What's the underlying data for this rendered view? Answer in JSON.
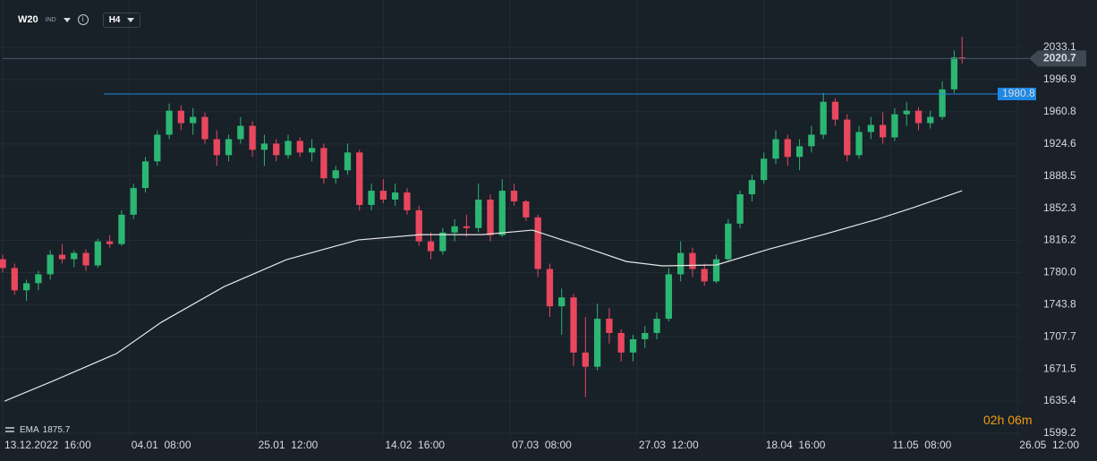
{
  "header": {
    "symbol": "W20",
    "market": "IND",
    "timeframe": "H4"
  },
  "countdown": "02h 06m",
  "chart_data": {
    "type": "candlestick",
    "up_color": "#2bb673",
    "down_color": "#e8475e",
    "grid": true,
    "xlim": [
      0,
      260
    ],
    "ylim": [
      1595.2,
      2086.5
    ],
    "yticks": [
      {
        "value": 2033.1,
        "label": "2033.1"
      },
      {
        "value": 1996.9,
        "label": "1996.9"
      },
      {
        "value": 1960.8,
        "label": "1960.8"
      },
      {
        "value": 1924.6,
        "label": "1924.6"
      },
      {
        "value": 1888.5,
        "label": "1888.5"
      },
      {
        "value": 1852.3,
        "label": "1852.3"
      },
      {
        "value": 1816.2,
        "label": "1816.2"
      },
      {
        "value": 1780.0,
        "label": "1780.0"
      },
      {
        "value": 1743.8,
        "label": "1743.8"
      },
      {
        "value": 1707.7,
        "label": "1707.7"
      },
      {
        "value": 1671.5,
        "label": "1671.5"
      },
      {
        "value": 1635.4,
        "label": "1635.4"
      },
      {
        "value": 1599.2,
        "label": "1599.2"
      }
    ],
    "xticks": [
      {
        "value": 0,
        "label": "13.12.2022  16:00"
      },
      {
        "value": 32,
        "label": "04.01  08:00"
      },
      {
        "value": 64,
        "label": "25.01  12:00"
      },
      {
        "value": 96,
        "label": "14.02  16:00"
      },
      {
        "value": 128,
        "label": "07.03  08:00"
      },
      {
        "value": 160,
        "label": "27.03  12:00"
      },
      {
        "value": 192,
        "label": "18.04  16:00"
      },
      {
        "value": 224,
        "label": "11.05  08:00"
      },
      {
        "value": 256,
        "label": "26.05  12:00"
      }
    ],
    "candles": [
      {
        "x": 0,
        "open": 1795,
        "high": 1800,
        "low": 1780,
        "close": 1785
      },
      {
        "x": 3,
        "open": 1785,
        "high": 1790,
        "low": 1755,
        "close": 1760
      },
      {
        "x": 6,
        "open": 1760,
        "high": 1772,
        "low": 1748,
        "close": 1768
      },
      {
        "x": 9,
        "open": 1768,
        "high": 1782,
        "low": 1760,
        "close": 1778
      },
      {
        "x": 12,
        "open": 1778,
        "high": 1805,
        "low": 1772,
        "close": 1800
      },
      {
        "x": 15,
        "open": 1800,
        "high": 1812,
        "low": 1790,
        "close": 1795
      },
      {
        "x": 18,
        "open": 1795,
        "high": 1805,
        "low": 1786,
        "close": 1802
      },
      {
        "x": 21,
        "open": 1802,
        "high": 1806,
        "low": 1782,
        "close": 1788
      },
      {
        "x": 24,
        "open": 1788,
        "high": 1818,
        "low": 1785,
        "close": 1815
      },
      {
        "x": 27,
        "open": 1815,
        "high": 1822,
        "low": 1808,
        "close": 1812
      },
      {
        "x": 30,
        "open": 1812,
        "high": 1850,
        "low": 1810,
        "close": 1845
      },
      {
        "x": 33,
        "open": 1845,
        "high": 1880,
        "low": 1840,
        "close": 1875
      },
      {
        "x": 36,
        "open": 1875,
        "high": 1910,
        "low": 1870,
        "close": 1905
      },
      {
        "x": 39,
        "open": 1905,
        "high": 1940,
        "low": 1900,
        "close": 1935
      },
      {
        "x": 42,
        "open": 1935,
        "high": 1970,
        "low": 1930,
        "close": 1962
      },
      {
        "x": 45,
        "open": 1962,
        "high": 1968,
        "low": 1940,
        "close": 1948
      },
      {
        "x": 48,
        "open": 1948,
        "high": 1965,
        "low": 1935,
        "close": 1955
      },
      {
        "x": 51,
        "open": 1955,
        "high": 1960,
        "low": 1925,
        "close": 1930
      },
      {
        "x": 54,
        "open": 1930,
        "high": 1940,
        "low": 1900,
        "close": 1912
      },
      {
        "x": 57,
        "open": 1912,
        "high": 1935,
        "low": 1905,
        "close": 1930
      },
      {
        "x": 60,
        "open": 1930,
        "high": 1955,
        "low": 1925,
        "close": 1945
      },
      {
        "x": 63,
        "open": 1945,
        "high": 1950,
        "low": 1910,
        "close": 1918
      },
      {
        "x": 66,
        "open": 1918,
        "high": 1935,
        "low": 1900,
        "close": 1925
      },
      {
        "x": 69,
        "open": 1925,
        "high": 1930,
        "low": 1905,
        "close": 1912
      },
      {
        "x": 72,
        "open": 1912,
        "high": 1935,
        "low": 1908,
        "close": 1928
      },
      {
        "x": 75,
        "open": 1928,
        "high": 1932,
        "low": 1910,
        "close": 1915
      },
      {
        "x": 78,
        "open": 1915,
        "high": 1930,
        "low": 1905,
        "close": 1920
      },
      {
        "x": 81,
        "open": 1920,
        "high": 1925,
        "low": 1880,
        "close": 1886
      },
      {
        "x": 84,
        "open": 1886,
        "high": 1900,
        "low": 1880,
        "close": 1895
      },
      {
        "x": 87,
        "open": 1895,
        "high": 1925,
        "low": 1890,
        "close": 1915
      },
      {
        "x": 90,
        "open": 1915,
        "high": 1918,
        "low": 1850,
        "close": 1856
      },
      {
        "x": 93,
        "open": 1856,
        "high": 1880,
        "low": 1850,
        "close": 1872
      },
      {
        "x": 96,
        "open": 1872,
        "high": 1885,
        "low": 1858,
        "close": 1862
      },
      {
        "x": 99,
        "open": 1862,
        "high": 1880,
        "low": 1855,
        "close": 1870
      },
      {
        "x": 102,
        "open": 1870,
        "high": 1875,
        "low": 1845,
        "close": 1850
      },
      {
        "x": 105,
        "open": 1850,
        "high": 1855,
        "low": 1810,
        "close": 1815
      },
      {
        "x": 108,
        "open": 1815,
        "high": 1825,
        "low": 1795,
        "close": 1804
      },
      {
        "x": 111,
        "open": 1804,
        "high": 1830,
        "low": 1800,
        "close": 1825
      },
      {
        "x": 114,
        "open": 1825,
        "high": 1840,
        "low": 1815,
        "close": 1832
      },
      {
        "x": 117,
        "open": 1832,
        "high": 1845,
        "low": 1820,
        "close": 1830
      },
      {
        "x": 120,
        "open": 1830,
        "high": 1880,
        "low": 1825,
        "close": 1862
      },
      {
        "x": 123,
        "open": 1862,
        "high": 1868,
        "low": 1815,
        "close": 1822
      },
      {
        "x": 126,
        "open": 1822,
        "high": 1885,
        "low": 1820,
        "close": 1872
      },
      {
        "x": 129,
        "open": 1872,
        "high": 1880,
        "low": 1855,
        "close": 1860
      },
      {
        "x": 132,
        "open": 1860,
        "high": 1862,
        "low": 1838,
        "close": 1842
      },
      {
        "x": 135,
        "open": 1842,
        "high": 1845,
        "low": 1775,
        "close": 1784
      },
      {
        "x": 138,
        "open": 1784,
        "high": 1790,
        "low": 1730,
        "close": 1742
      },
      {
        "x": 141,
        "open": 1742,
        "high": 1762,
        "low": 1710,
        "close": 1752
      },
      {
        "x": 144,
        "open": 1752,
        "high": 1756,
        "low": 1675,
        "close": 1690
      },
      {
        "x": 147,
        "open": 1690,
        "high": 1730,
        "low": 1640,
        "close": 1674
      },
      {
        "x": 150,
        "open": 1674,
        "high": 1745,
        "low": 1670,
        "close": 1728
      },
      {
        "x": 153,
        "open": 1728,
        "high": 1740,
        "low": 1700,
        "close": 1712
      },
      {
        "x": 156,
        "open": 1712,
        "high": 1716,
        "low": 1680,
        "close": 1690
      },
      {
        "x": 159,
        "open": 1690,
        "high": 1710,
        "low": 1680,
        "close": 1705
      },
      {
        "x": 162,
        "open": 1705,
        "high": 1720,
        "low": 1695,
        "close": 1712
      },
      {
        "x": 165,
        "open": 1712,
        "high": 1735,
        "low": 1705,
        "close": 1728
      },
      {
        "x": 168,
        "open": 1728,
        "high": 1785,
        "low": 1725,
        "close": 1778
      },
      {
        "x": 171,
        "open": 1778,
        "high": 1815,
        "low": 1770,
        "close": 1802
      },
      {
        "x": 174,
        "open": 1802,
        "high": 1808,
        "low": 1775,
        "close": 1784
      },
      {
        "x": 177,
        "open": 1784,
        "high": 1790,
        "low": 1765,
        "close": 1770
      },
      {
        "x": 180,
        "open": 1770,
        "high": 1800,
        "low": 1768,
        "close": 1795
      },
      {
        "x": 183,
        "open": 1795,
        "high": 1840,
        "low": 1792,
        "close": 1835
      },
      {
        "x": 186,
        "open": 1835,
        "high": 1872,
        "low": 1830,
        "close": 1868
      },
      {
        "x": 189,
        "open": 1868,
        "high": 1890,
        "low": 1860,
        "close": 1884
      },
      {
        "x": 192,
        "open": 1884,
        "high": 1915,
        "low": 1880,
        "close": 1908
      },
      {
        "x": 195,
        "open": 1908,
        "high": 1940,
        "low": 1902,
        "close": 1930
      },
      {
        "x": 198,
        "open": 1930,
        "high": 1935,
        "low": 1900,
        "close": 1910
      },
      {
        "x": 201,
        "open": 1910,
        "high": 1930,
        "low": 1895,
        "close": 1922
      },
      {
        "x": 204,
        "open": 1922,
        "high": 1945,
        "low": 1915,
        "close": 1935
      },
      {
        "x": 207,
        "open": 1935,
        "high": 1982,
        "low": 1930,
        "close": 1972
      },
      {
        "x": 210,
        "open": 1972,
        "high": 1976,
        "low": 1945,
        "close": 1952
      },
      {
        "x": 213,
        "open": 1952,
        "high": 1958,
        "low": 1905,
        "close": 1912
      },
      {
        "x": 216,
        "open": 1912,
        "high": 1945,
        "low": 1908,
        "close": 1938
      },
      {
        "x": 219,
        "open": 1938,
        "high": 1955,
        "low": 1930,
        "close": 1946
      },
      {
        "x": 222,
        "open": 1946,
        "high": 1960,
        "low": 1925,
        "close": 1932
      },
      {
        "x": 225,
        "open": 1932,
        "high": 1965,
        "low": 1928,
        "close": 1958
      },
      {
        "x": 228,
        "open": 1958,
        "high": 1972,
        "low": 1945,
        "close": 1962
      },
      {
        "x": 231,
        "open": 1962,
        "high": 1966,
        "low": 1940,
        "close": 1948
      },
      {
        "x": 234,
        "open": 1948,
        "high": 1962,
        "low": 1942,
        "close": 1955
      },
      {
        "x": 237,
        "open": 1955,
        "high": 1995,
        "low": 1952,
        "close": 1986
      },
      {
        "x": 240,
        "open": 1986,
        "high": 2030,
        "low": 1982,
        "close": 2022
      },
      {
        "x": 242,
        "open": 2022,
        "high": 2045,
        "low": 2015,
        "close": 2020.7
      }
    ],
    "ema": {
      "name": "EMA",
      "last": 1875.7,
      "color": "#e6e6e6",
      "x": [
        0.5,
        13,
        28.7,
        40,
        55.8,
        71.6,
        89.6,
        105.4,
        121,
        133.6,
        146,
        157.3,
        166.4,
        180,
        193.5,
        207,
        220.5,
        229.6,
        242
      ],
      "values": [
        1635.4,
        1658.6,
        1688.8,
        1724,
        1764,
        1794.5,
        1816.6,
        1822.6,
        1822.6,
        1827.7,
        1809.6,
        1792.4,
        1787.5,
        1788.5,
        1806.6,
        1822.7,
        1839.8,
        1852.9,
        1872
      ]
    },
    "price_lines": [
      {
        "value": 2020.7,
        "color": "#4b5a68",
        "tag_color": "#3d4853",
        "from_x": 0
      },
      {
        "value": 1980.8,
        "color": "#1e88e5",
        "tag_color": "#1e88e5",
        "from_x": 25.5
      }
    ]
  }
}
